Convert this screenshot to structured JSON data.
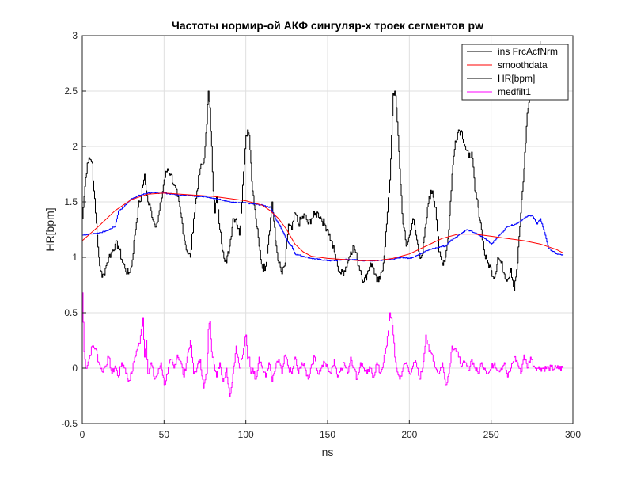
{
  "chart_data": {
    "type": "line",
    "title": "Частоты нормир-ой АКФ сингуляр-х троек сегментов pw",
    "xlabel": "ns",
    "ylabel": "HR[bpm]",
    "xlim": [
      0,
      300
    ],
    "ylim": [
      -0.5,
      3
    ],
    "xticks": [
      "0",
      "50",
      "100",
      "150",
      "200",
      "250",
      "300"
    ],
    "yticks": [
      "-0.5",
      "0",
      "0.5",
      "1",
      "1.5",
      "2",
      "2.5",
      "3"
    ],
    "grid": true,
    "legend_position": "top-right",
    "legend": [
      "ins FrcAcfNrm",
      "smoothdata",
      "HR[bpm]",
      "medfilt1"
    ],
    "series": [
      {
        "name": "ins FrcAcfNrm",
        "color": "#000000",
        "x": [
          0,
          1,
          2,
          3,
          4,
          5,
          6,
          7,
          8,
          9,
          10,
          11,
          12,
          13,
          14,
          15,
          16,
          18,
          20,
          22,
          24,
          26,
          28,
          30,
          32,
          34,
          35,
          36,
          37,
          38,
          39,
          40,
          42,
          44,
          46,
          48,
          50,
          52,
          54,
          56,
          58,
          60,
          62,
          64,
          66,
          68,
          70,
          72,
          74,
          75,
          76,
          77,
          78,
          79,
          80,
          81,
          82,
          84,
          86,
          88,
          90,
          92,
          94,
          96,
          98,
          100,
          101,
          102,
          103,
          104,
          106,
          108,
          110,
          112,
          114,
          116,
          118,
          120,
          122,
          124,
          126,
          128,
          130,
          132,
          134,
          136,
          138,
          140,
          142,
          144,
          146,
          148,
          150,
          152,
          154,
          156,
          158,
          160,
          162,
          164,
          166,
          168,
          170,
          172,
          174,
          176,
          178,
          180,
          182,
          184,
          186,
          188,
          189,
          190,
          191,
          192,
          194,
          196,
          198,
          200,
          202,
          204,
          206,
          208,
          210,
          212,
          214,
          216,
          218,
          220,
          222,
          224,
          226,
          228,
          230,
          232,
          234,
          236,
          238,
          240,
          242,
          244,
          246,
          248,
          250,
          252,
          254,
          256,
          258,
          260,
          262,
          264,
          266,
          268,
          270,
          272,
          274,
          276,
          278,
          280
        ],
        "y": [
          1.35,
          1.55,
          1.72,
          1.85,
          1.9,
          1.88,
          1.85,
          1.6,
          1.4,
          1.2,
          1.0,
          0.88,
          0.82,
          0.85,
          0.9,
          0.95,
          1.0,
          1.05,
          1.12,
          1.1,
          0.98,
          0.9,
          0.85,
          0.92,
          1.2,
          1.45,
          1.5,
          1.55,
          1.65,
          1.75,
          1.6,
          1.5,
          1.42,
          1.3,
          1.32,
          1.5,
          1.7,
          1.8,
          1.75,
          1.65,
          1.55,
          1.4,
          1.2,
          1.05,
          1.0,
          1.35,
          1.6,
          1.8,
          1.85,
          2.0,
          2.2,
          2.5,
          2.35,
          2.0,
          1.6,
          1.4,
          1.55,
          1.25,
          1.05,
          0.95,
          1.1,
          1.35,
          1.35,
          1.2,
          1.65,
          2.1,
          2.15,
          2.1,
          1.85,
          1.6,
          1.35,
          1.1,
          0.9,
          0.92,
          1.2,
          1.5,
          1.15,
          0.95,
          0.85,
          0.95,
          1.3,
          1.25,
          1.4,
          1.3,
          1.35,
          1.38,
          1.3,
          1.35,
          1.38,
          1.4,
          1.35,
          1.3,
          1.25,
          1.15,
          1.05,
          0.92,
          0.85,
          0.88,
          0.95,
          1.05,
          1.1,
          0.98,
          0.88,
          0.78,
          0.85,
          0.95,
          0.9,
          0.78,
          0.8,
          0.95,
          1.3,
          1.7,
          2.1,
          2.48,
          2.5,
          2.35,
          1.8,
          1.3,
          1.1,
          1.2,
          1.35,
          1.2,
          1.02,
          1.03,
          1.3,
          1.55,
          1.6,
          1.45,
          1.05,
          0.95,
          1.0,
          1.25,
          1.75,
          2.05,
          2.15,
          2.13,
          2.0,
          1.9,
          1.95,
          1.6,
          1.45,
          1.25,
          1.02,
          0.95,
          0.88,
          0.82,
          1.0,
          0.95,
          0.85,
          0.8,
          0.9,
          0.7,
          0.95,
          1.4,
          1.8,
          2.3,
          2.5,
          2.65,
          2.85,
          2.95
        ]
      },
      {
        "name": "smoothdata",
        "color": "#ff0000",
        "x": [
          0,
          10,
          20,
          30,
          40,
          50,
          60,
          70,
          80,
          90,
          100,
          110,
          115,
          120,
          125,
          130,
          135,
          140,
          150,
          160,
          170,
          180,
          190,
          200,
          210,
          220,
          230,
          240,
          250,
          260,
          270,
          280,
          290,
          294
        ],
        "y": [
          1.15,
          1.28,
          1.42,
          1.52,
          1.57,
          1.58,
          1.57,
          1.56,
          1.55,
          1.53,
          1.51,
          1.47,
          1.42,
          1.35,
          1.25,
          1.12,
          1.05,
          1.01,
          0.99,
          0.98,
          0.97,
          0.97,
          0.99,
          1.03,
          1.1,
          1.17,
          1.21,
          1.21,
          1.19,
          1.17,
          1.15,
          1.12,
          1.07,
          1.04
        ]
      },
      {
        "name": "HR[bpm]",
        "color": "#0000ff",
        "x": [
          0,
          5,
          10,
          15,
          20,
          22,
          25,
          28,
          30,
          35,
          40,
          45,
          50,
          55,
          60,
          65,
          70,
          75,
          80,
          85,
          90,
          95,
          100,
          105,
          110,
          115,
          118,
          120,
          123,
          125,
          128,
          130,
          135,
          140,
          145,
          150,
          155,
          160,
          165,
          170,
          175,
          180,
          185,
          190,
          195,
          200,
          205,
          210,
          215,
          220,
          222,
          225,
          230,
          235,
          240,
          245,
          248,
          250,
          255,
          260,
          265,
          270,
          272,
          275,
          278,
          280,
          283,
          285,
          290,
          294
        ],
        "y": [
          1.2,
          1.21,
          1.22,
          1.24,
          1.28,
          1.42,
          1.45,
          1.5,
          1.53,
          1.56,
          1.58,
          1.58,
          1.58,
          1.57,
          1.56,
          1.56,
          1.55,
          1.55,
          1.53,
          1.52,
          1.5,
          1.49,
          1.49,
          1.48,
          1.47,
          1.45,
          1.35,
          1.3,
          1.22,
          1.15,
          1.1,
          1.03,
          1.01,
          0.99,
          0.98,
          0.97,
          0.97,
          0.98,
          0.98,
          0.97,
          0.97,
          0.97,
          0.98,
          0.98,
          1.0,
          0.99,
          1.02,
          1.06,
          1.08,
          1.1,
          1.1,
          1.15,
          1.2,
          1.25,
          1.22,
          1.18,
          1.15,
          1.12,
          1.2,
          1.28,
          1.3,
          1.35,
          1.37,
          1.38,
          1.3,
          1.35,
          1.2,
          1.08,
          1.03,
          1.02
        ]
      },
      {
        "name": "medfilt1",
        "color": "#ff00ff",
        "x": [
          0,
          1,
          2,
          4,
          6,
          8,
          10,
          12,
          14,
          16,
          18,
          20,
          22,
          24,
          26,
          28,
          30,
          32,
          34,
          35,
          36,
          37,
          38,
          39,
          40,
          42,
          44,
          46,
          48,
          50,
          52,
          54,
          56,
          58,
          60,
          62,
          64,
          66,
          68,
          70,
          72,
          74,
          76,
          77,
          78,
          79,
          80,
          82,
          84,
          86,
          88,
          90,
          92,
          94,
          96,
          98,
          100,
          101,
          102,
          103,
          104,
          106,
          108,
          110,
          112,
          114,
          116,
          118,
          120,
          122,
          124,
          126,
          128,
          130,
          132,
          134,
          136,
          138,
          140,
          142,
          144,
          146,
          148,
          150,
          152,
          154,
          156,
          158,
          160,
          162,
          164,
          166,
          168,
          170,
          172,
          174,
          176,
          178,
          180,
          182,
          184,
          186,
          188,
          189,
          190,
          191,
          192,
          194,
          196,
          198,
          200,
          202,
          204,
          206,
          208,
          210,
          212,
          214,
          216,
          218,
          220,
          222,
          224,
          226,
          228,
          230,
          232,
          234,
          236,
          238,
          240,
          242,
          244,
          246,
          248,
          250,
          252,
          254,
          256,
          258,
          260,
          262,
          264,
          266,
          268,
          270,
          272,
          274,
          276,
          278,
          280,
          285,
          290,
          294
        ],
        "y": [
          0.68,
          0.15,
          0.0,
          0.08,
          0.2,
          0.18,
          0.05,
          -0.03,
          0.02,
          0.1,
          -0.05,
          0.02,
          -0.08,
          0.05,
          0.0,
          -0.12,
          -0.05,
          0.1,
          0.2,
          0.22,
          0.35,
          0.45,
          0.1,
          0.25,
          -0.05,
          0.05,
          -0.1,
          -0.05,
          0.05,
          -0.15,
          -0.05,
          0.08,
          0.0,
          0.12,
          0.06,
          -0.08,
          0.1,
          0.25,
          -0.05,
          0.0,
          0.08,
          -0.18,
          -0.05,
          0.35,
          0.42,
          0.15,
          0.1,
          -0.08,
          0.05,
          -0.12,
          0.0,
          -0.26,
          -0.05,
          0.2,
          0.0,
          0.12,
          0.3,
          0.08,
          0.1,
          -0.05,
          0.0,
          -0.1,
          0.1,
          0.0,
          -0.08,
          0.05,
          -0.12,
          0.0,
          0.08,
          -0.05,
          0.12,
          0.0,
          -0.05,
          0.1,
          -0.05,
          0.05,
          0.0,
          -0.1,
          0.03,
          0.1,
          -0.05,
          0.0,
          0.05,
          0.0,
          -0.05,
          0.08,
          -0.08,
          0.0,
          0.05,
          -0.05,
          0.1,
          0.0,
          -0.1,
          0.05,
          0.0,
          -0.05,
          0.0,
          -0.08,
          0.05,
          -0.05,
          0.05,
          0.2,
          0.5,
          0.45,
          0.3,
          0.1,
          0.0,
          -0.1,
          0.0,
          0.05,
          -0.05,
          0.02,
          0.05,
          -0.1,
          0.0,
          0.3,
          0.15,
          0.12,
          0.0,
          -0.05,
          0.05,
          -0.15,
          -0.05,
          0.2,
          0.18,
          0.1,
          0.02,
          0.05,
          -0.02,
          0.08,
          0.0,
          -0.05,
          0.05,
          0.0,
          -0.05,
          0.0,
          0.05,
          -0.02,
          0.0,
          0.05,
          -0.08,
          0.0,
          0.1,
          0.05,
          -0.05,
          0.12,
          0.0,
          0.1,
          0.02,
          0.0,
          0.0,
          0.0,
          0.0,
          0.0
        ]
      }
    ]
  }
}
